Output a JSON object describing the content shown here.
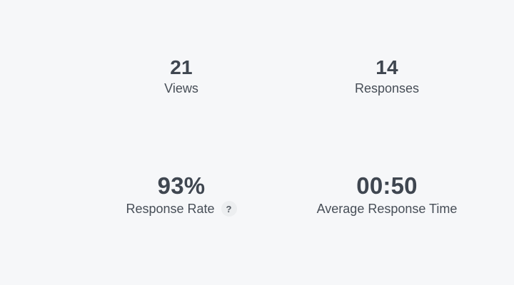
{
  "page": {
    "background_color": "#f6f7f9",
    "value_text_color": "#3f4650",
    "label_text_color": "#474e57",
    "help_badge_background": "#eceef0"
  },
  "stats": [
    {
      "value": "21",
      "label": "Views"
    },
    {
      "value": "14",
      "label": "Responses"
    },
    {
      "value": "93%",
      "label": "Response Rate",
      "help_icon": "?"
    },
    {
      "value": "00:50",
      "label": "Average Response Time"
    }
  ]
}
